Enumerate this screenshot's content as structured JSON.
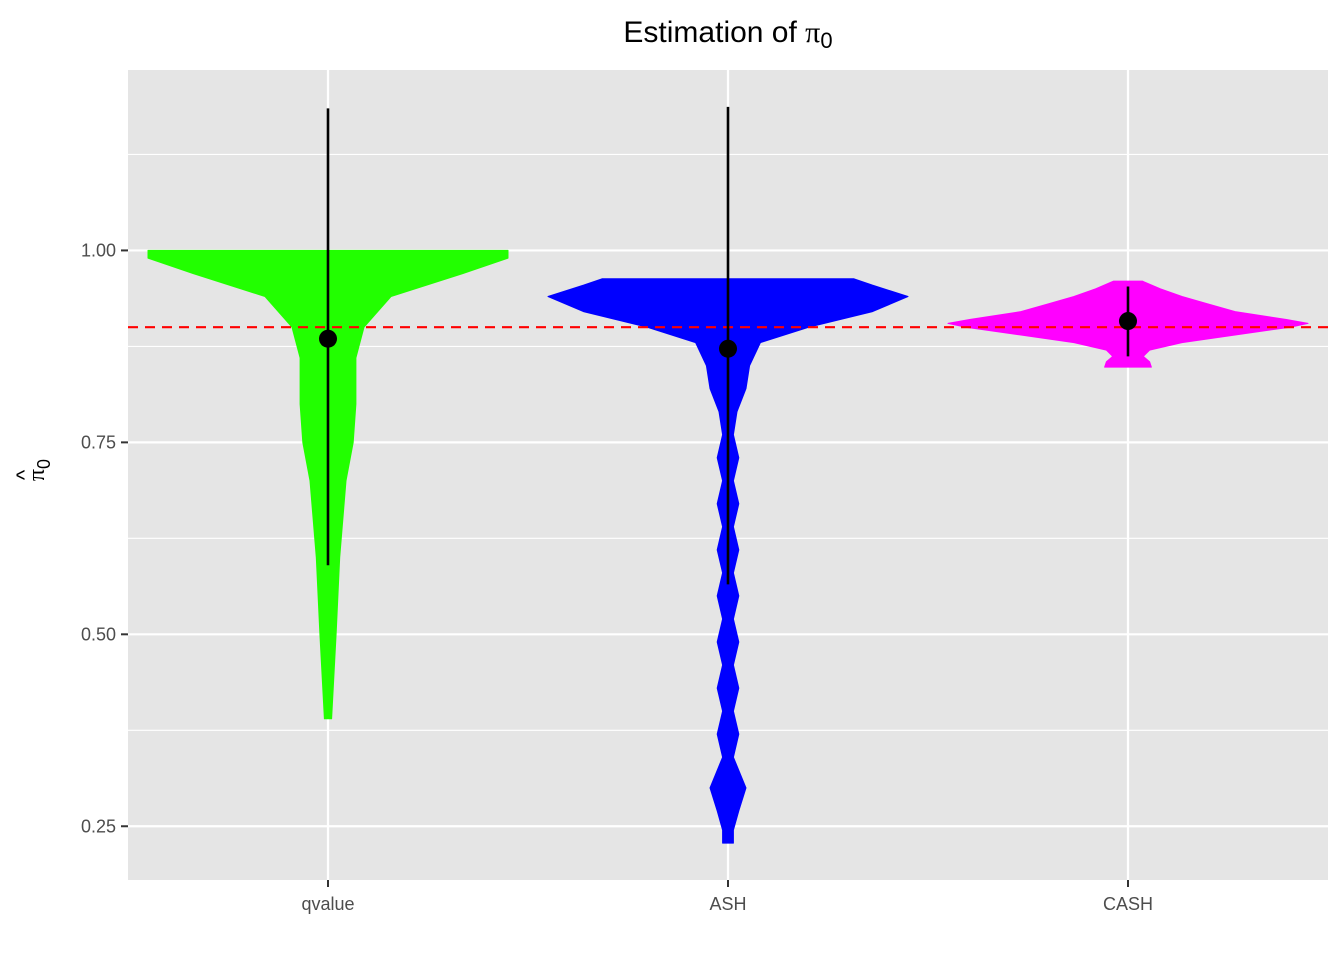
{
  "chart_data": {
    "type": "violin",
    "title_main": "Estimation of ",
    "title_symbol": "π",
    "title_subscript": "0",
    "ylabel_symbol": "π",
    "ylabel_hat": "^",
    "ylabel_subscript": "0",
    "xlabel": "",
    "categories": [
      "qvalue",
      "ASH",
      "CASH"
    ],
    "ylim": [
      0.18,
      1.235
    ],
    "yticks": [
      0.25,
      0.5,
      0.75,
      1.0
    ],
    "ytick_labels": [
      "0.25",
      "0.50",
      "0.75",
      "1.00"
    ],
    "reference_line": {
      "y": 0.9,
      "color": "#ff0000",
      "style": "dashed"
    },
    "grid": true,
    "panel_background": "#e5e5e5",
    "series": [
      {
        "category": "qvalue",
        "fill": "#22ff00",
        "summary": {
          "mean": 0.885,
          "lower": 0.59,
          "upper": 1.185
        },
        "profile": [
          [
            0.39,
            0.02
          ],
          [
            0.5,
            0.045
          ],
          [
            0.6,
            0.065
          ],
          [
            0.7,
            0.1
          ],
          [
            0.75,
            0.14
          ],
          [
            0.8,
            0.155
          ],
          [
            0.86,
            0.155
          ],
          [
            0.9,
            0.2
          ],
          [
            0.94,
            0.35
          ],
          [
            0.97,
            0.75
          ],
          [
            0.99,
            1.0
          ],
          [
            1.0,
            1.0
          ]
        ]
      },
      {
        "category": "ASH",
        "fill": "#0000ff",
        "summary": {
          "mean": 0.872,
          "lower": 0.565,
          "upper": 1.187
        },
        "profile": [
          [
            0.228,
            0.03
          ],
          [
            0.245,
            0.03
          ],
          [
            0.27,
            0.06
          ],
          [
            0.3,
            0.1
          ],
          [
            0.34,
            0.03
          ],
          [
            0.37,
            0.06
          ],
          [
            0.4,
            0.03
          ],
          [
            0.43,
            0.06
          ],
          [
            0.46,
            0.03
          ],
          [
            0.49,
            0.06
          ],
          [
            0.52,
            0.03
          ],
          [
            0.55,
            0.06
          ],
          [
            0.58,
            0.03
          ],
          [
            0.61,
            0.06
          ],
          [
            0.64,
            0.03
          ],
          [
            0.67,
            0.06
          ],
          [
            0.7,
            0.03
          ],
          [
            0.73,
            0.06
          ],
          [
            0.76,
            0.03
          ],
          [
            0.79,
            0.05
          ],
          [
            0.82,
            0.1
          ],
          [
            0.85,
            0.12
          ],
          [
            0.88,
            0.18
          ],
          [
            0.9,
            0.45
          ],
          [
            0.92,
            0.8
          ],
          [
            0.94,
            1.0
          ],
          [
            0.955,
            0.8
          ],
          [
            0.963,
            0.7
          ]
        ]
      },
      {
        "category": "CASH",
        "fill": "#ff00ff",
        "summary": {
          "mean": 0.908,
          "lower": 0.862,
          "upper": 0.953
        },
        "profile": [
          [
            0.848,
            0.13
          ],
          [
            0.855,
            0.12
          ],
          [
            0.862,
            0.085
          ],
          [
            0.87,
            0.12
          ],
          [
            0.88,
            0.3
          ],
          [
            0.89,
            0.6
          ],
          [
            0.9,
            0.9
          ],
          [
            0.905,
            1.0
          ],
          [
            0.91,
            0.88
          ],
          [
            0.92,
            0.6
          ],
          [
            0.93,
            0.45
          ],
          [
            0.94,
            0.3
          ],
          [
            0.95,
            0.18
          ],
          [
            0.96,
            0.08
          ]
        ]
      }
    ]
  }
}
